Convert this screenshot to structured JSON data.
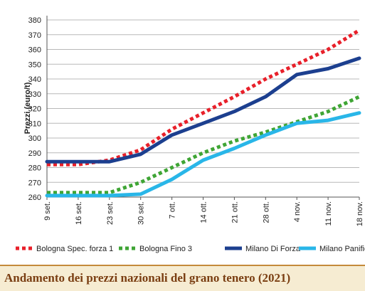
{
  "caption": "Andamento dei prezzi nazionali del grano tenero (2021)",
  "chart_data": {
    "type": "line",
    "title": "",
    "xlabel": "",
    "ylabel": "Prezzi (euro/t)",
    "ylim": [
      260,
      380
    ],
    "yticks": [
      260,
      270,
      280,
      290,
      300,
      310,
      320,
      330,
      340,
      350,
      360,
      370,
      380
    ],
    "categories": [
      "9 set.",
      "16 set.",
      "23 set.",
      "30 set.",
      "7 ott.",
      "14 ott.",
      "21 ott.",
      "28 ott.",
      "4 nov.",
      "11 nov.",
      "18 nov."
    ],
    "grid": "horizontal",
    "legend_position": "bottom",
    "series": [
      {
        "name": "Bologna Spec. forza 1",
        "color": "#e8202a",
        "style": "dotted",
        "values": [
          282,
          282,
          285,
          292,
          306,
          317,
          328,
          340,
          350,
          360,
          373
        ]
      },
      {
        "name": "Bologna Fino 3",
        "color": "#3fa535",
        "style": "dotted",
        "values": [
          263,
          263,
          263,
          270,
          280,
          290,
          298,
          304,
          311,
          318,
          328
        ]
      },
      {
        "name": "Milano Di Forza",
        "color": "#1c3f8f",
        "style": "solid",
        "values": [
          284,
          284,
          284,
          289,
          302,
          310,
          318,
          328,
          343,
          347,
          354
        ]
      },
      {
        "name": "Milano Panificabile",
        "color": "#29b6e8",
        "style": "solid",
        "values": [
          261,
          261,
          261,
          262,
          272,
          285,
          293,
          302,
          310,
          312,
          317
        ]
      }
    ]
  }
}
